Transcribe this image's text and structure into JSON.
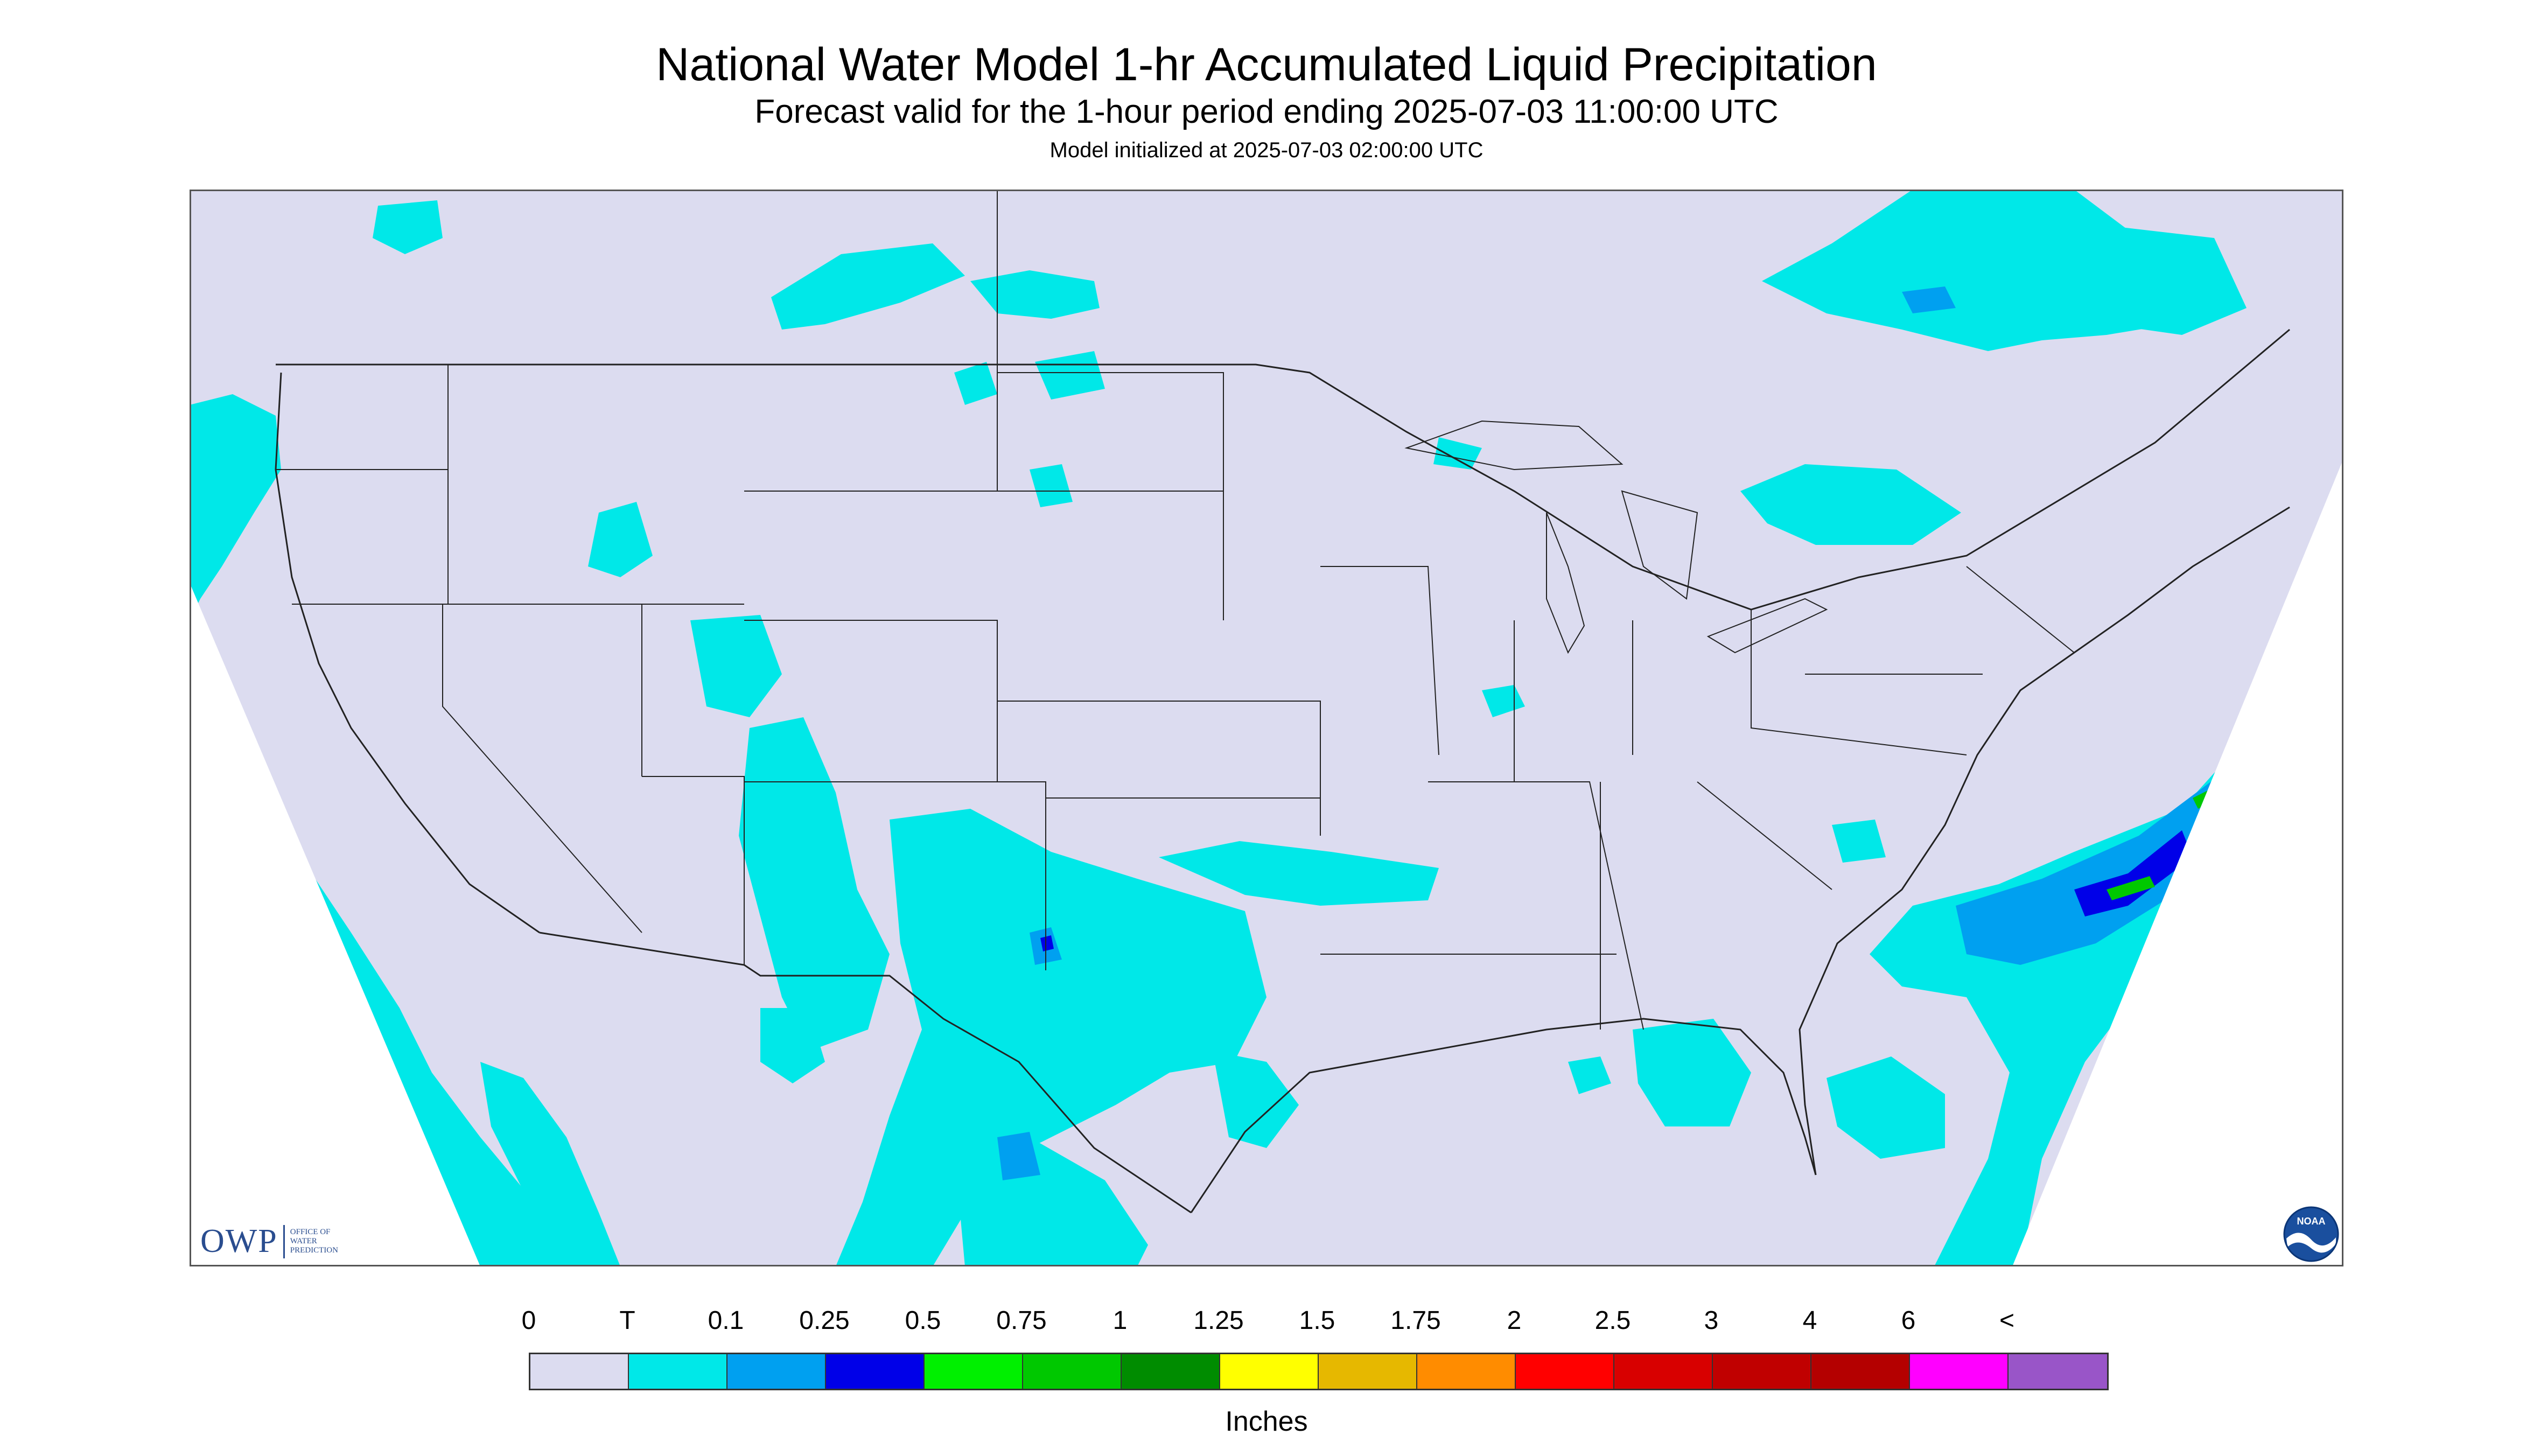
{
  "header": {
    "title": "National Water Model 1-hr Accumulated Liquid Precipitation",
    "subtitle": "Forecast valid for the 1-hour period ending 2025-07-03 11:00:00 UTC",
    "init": "Model initialized at 2025-07-03 02:00:00 UTC"
  },
  "map": {
    "background_color": "#dcdcf0",
    "outside_color": "#ffffff",
    "border_color": "#000000",
    "precip_colors": {
      "trace": "#00e8e8",
      "light": "#00a0f0",
      "moderate": "#0000e8",
      "heavy": "#00c800"
    }
  },
  "legend": {
    "labels": [
      "0",
      "T",
      "0.1",
      "0.25",
      "0.5",
      "0.75",
      "1",
      "1.25",
      "1.5",
      "1.75",
      "2",
      "2.5",
      "3",
      "4",
      "6",
      "<"
    ],
    "colors": [
      "#dcdcf0",
      "#00e8e8",
      "#00a0f0",
      "#0000e8",
      "#00f000",
      "#00c800",
      "#008c00",
      "#ffff00",
      "#e6b800",
      "#ff8c00",
      "#ff0000",
      "#d80000",
      "#c00000",
      "#b40000",
      "#ff00ff",
      "#9955c8"
    ],
    "units": "Inches"
  },
  "logos": {
    "owp": {
      "mark": "OWP",
      "line1": "OFFICE OF",
      "line2": "WATER",
      "line3": "PREDICTION",
      "icon": "owp-logo-icon"
    },
    "noaa": {
      "text": "NOAA",
      "icon": "noaa-logo-icon"
    }
  }
}
